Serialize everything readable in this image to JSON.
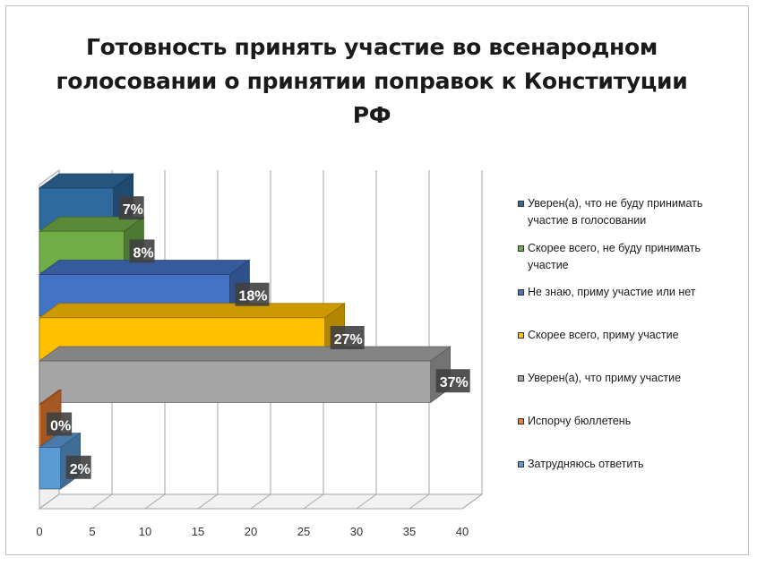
{
  "chart_data": {
    "type": "bar",
    "orientation": "horizontal",
    "style": "3d",
    "title": "Готовность принять участие во всенародном голосовании о принятии поправок к Конституции РФ",
    "categories": [
      "Уверен(а), что не буду принимать участие в голосовании",
      "Скорее всего, не буду принимать участие",
      "Не знаю, приму участие или нет",
      "Скорее всего, приму участие",
      "Уверен(а), что приму участие",
      "Испорчу бюллетень",
      "Затрудняюсь ответить"
    ],
    "values": [
      7,
      8,
      18,
      27,
      37,
      0,
      2
    ],
    "data_labels": [
      "7%",
      "8%",
      "18%",
      "27%",
      "37%",
      "0%",
      "2%"
    ],
    "colors": [
      "#2e6a9e",
      "#70ad47",
      "#4472c4",
      "#ffc000",
      "#a5a5a5",
      "#ed7d31",
      "#5b9bd5"
    ],
    "x_ticks": [
      "0",
      "5",
      "10",
      "15",
      "20",
      "25",
      "30",
      "35",
      "40"
    ],
    "xlim": [
      0,
      40
    ],
    "grid": true,
    "legend_position": "right"
  }
}
